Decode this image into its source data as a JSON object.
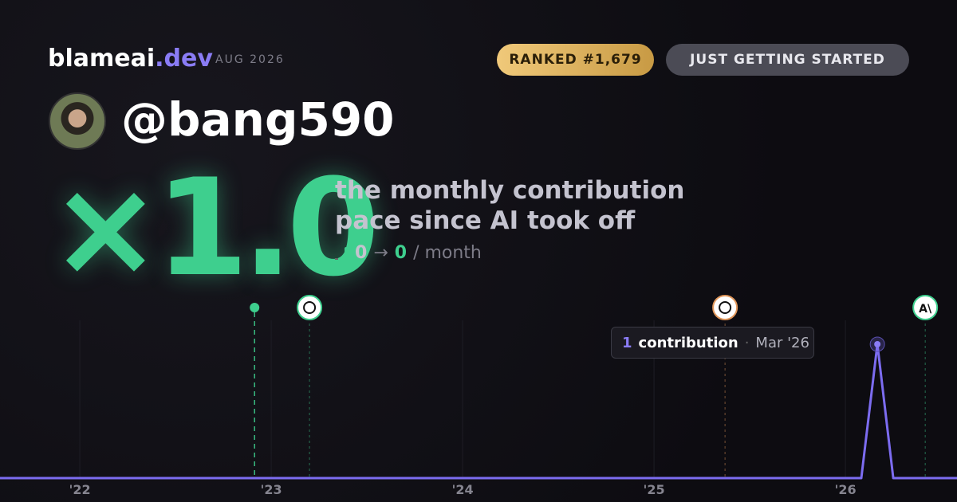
{
  "header": {
    "brand": "blameai",
    "brand_suffix": ".dev",
    "date": "AUG 2026",
    "rank_badge": "RANKED #1,679",
    "status_badge": "JUST GETTING STARTED"
  },
  "profile": {
    "username": "@bang590"
  },
  "headline": {
    "multiplier": "×1.0",
    "description_line1": "the monthly contribution",
    "description_line2": "pace since AI took off",
    "pace_before": "0",
    "pace_arrow": "→",
    "pace_after": "0",
    "pace_unit": "/ month"
  },
  "chart_data": {
    "type": "line",
    "x": [
      2021.583,
      2026.083,
      2026.167,
      2026.25,
      2026.583
    ],
    "series": [
      {
        "name": "contributions",
        "color": "#7c6cf0",
        "values": [
          0,
          0,
          1,
          0,
          0
        ]
      }
    ],
    "xlim": [
      2021.583,
      2026.583
    ],
    "xticks": [
      {
        "value": 2022,
        "label": "'22"
      },
      {
        "value": 2023,
        "label": "'23"
      },
      {
        "value": 2024,
        "label": "'24"
      },
      {
        "value": 2025,
        "label": "'25"
      },
      {
        "value": 2026,
        "label": "'26"
      }
    ],
    "ylim": [
      0,
      1
    ],
    "events": [
      {
        "x": 2022.913,
        "marker": "dot",
        "color": "#3ecf8e"
      },
      {
        "x": 2023.2,
        "marker": "badge",
        "color": "#3ecf8e"
      },
      {
        "x": 2025.371,
        "marker": "badge",
        "color": "#e0965a"
      },
      {
        "x": 2026.417,
        "marker": "badge",
        "color": "#3ecf8e",
        "label": "A\\"
      }
    ],
    "tooltip": {
      "unit": "contribution",
      "separator": "·",
      "date": "Mar '26"
    }
  }
}
